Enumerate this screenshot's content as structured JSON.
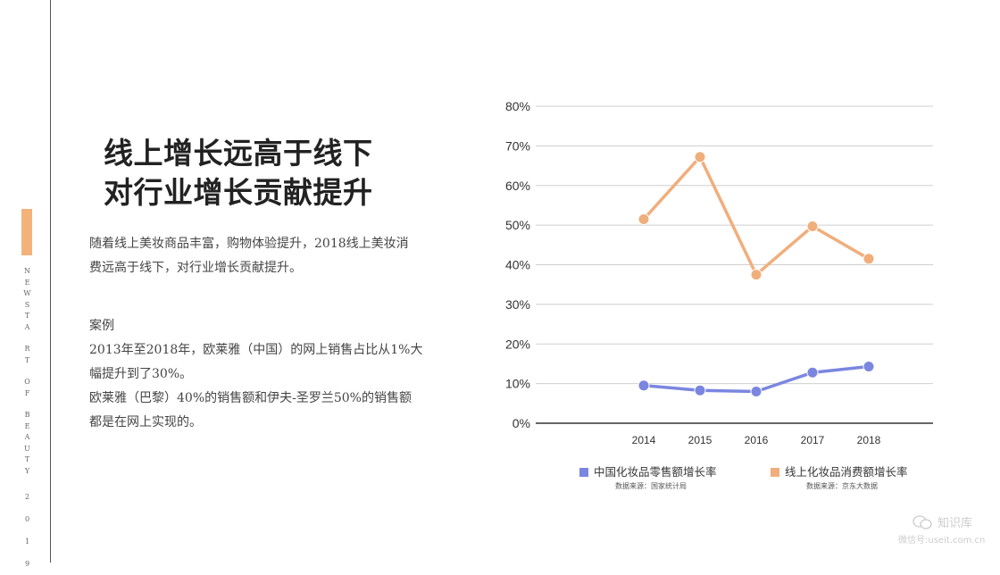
{
  "sidebar": {
    "vertical_text": [
      "N",
      "E",
      "W",
      "S",
      "T",
      "A",
      "R",
      "T",
      "O",
      "F",
      "B",
      "E",
      "A",
      "U",
      "T",
      "Y"
    ],
    "year_digits": [
      "2",
      "0",
      "1",
      "9"
    ]
  },
  "headline": {
    "line1": "线上增长远高于线下",
    "line2": "对行业增长贡献提升"
  },
  "body": {
    "intro_line1": "随着线上美妆商品丰富，购物体验提升，2018线上美妆消",
    "intro_line2": "费远高于线下，对行业增长贡献提升。",
    "case_title": "案例",
    "case_line1": "2013年至2018年，欧莱雅（中国）的网上销售占比从1%大",
    "case_line2": "幅提升到了30%。",
    "case_line3": "欧莱雅（巴黎）40%的销售额和伊夫-圣罗兰50%的销售额",
    "case_line4": "都是在网上实现的。"
  },
  "chart_data": {
    "type": "line",
    "categories": [
      "2014",
      "2015",
      "2016",
      "2017",
      "2018"
    ],
    "series": [
      {
        "name": "中国化妆品零售额增长率",
        "values": [
          9.5,
          8.3,
          8.0,
          12.8,
          14.3
        ],
        "color": "#7b86e0",
        "source": "数据来源：国家统计局"
      },
      {
        "name": "线上化妆品消费额增长率",
        "values": [
          51.5,
          67.2,
          37.5,
          49.7,
          41.5
        ],
        "color": "#f0ae7c",
        "source": "数据来源：京东大数据"
      }
    ],
    "ylim": [
      0,
      80
    ],
    "yticks": [
      "0%",
      "10%",
      "20%",
      "30%",
      "40%",
      "50%",
      "60%",
      "70%",
      "80%"
    ],
    "grid": true,
    "legend_position": "bottom"
  },
  "watermark": {
    "name": "知识库",
    "account": "微信号:useit.com.cn"
  }
}
